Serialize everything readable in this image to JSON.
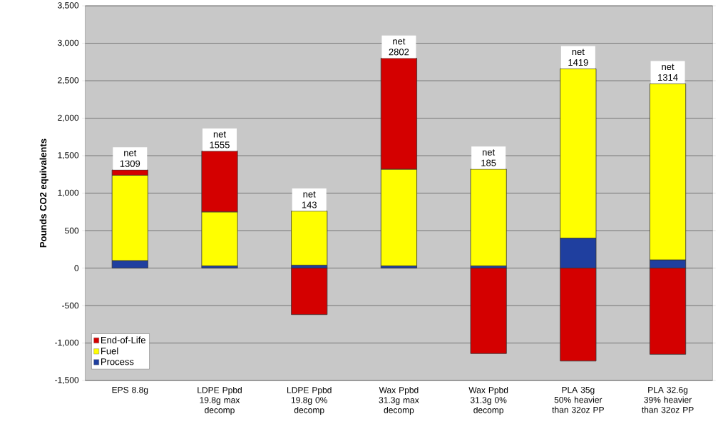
{
  "chart_data": {
    "type": "bar",
    "stacked": true,
    "ylabel": "Pounds CO2 equivalents",
    "categories": [
      "EPS 8.8g",
      "LDPE Ppbd 19.8g max decomp",
      "LDPE Ppbd 19.8g 0% decomp",
      "Wax Ppbd 31.3g max decomp",
      "Wax Ppbd 31.3g 0% decomp",
      "PLA 35g 50% heavier than 32oz PP",
      "PLA 32.6g 39% heavier than 32oz PP"
    ],
    "series": [
      {
        "name": "Process",
        "color": "#1f3f9f",
        "values": [
          100,
          30,
          40,
          30,
          30,
          400,
          110
        ]
      },
      {
        "name": "Fuel",
        "color": "#ffff00",
        "values": [
          1140,
          720,
          720,
          1290,
          1290,
          2260,
          2350
        ]
      },
      {
        "name": "End-of-Life",
        "color": "#d40000",
        "values": [
          70,
          810,
          -620,
          1480,
          -1140,
          -1240,
          -1150
        ]
      }
    ],
    "totals": [
      "net 1309",
      "net 1555",
      "net 143",
      "net 2802",
      "net 185",
      "net 1419",
      "net 1314"
    ],
    "ylim": [
      -1500,
      3500
    ],
    "yticks": [
      {
        "value": -1500,
        "label": "-1,500"
      },
      {
        "value": -1000,
        "label": "-1,000"
      },
      -500,
      0,
      500,
      {
        "value": 1000,
        "label": "1,000"
      },
      {
        "value": 1500,
        "label": "1,500"
      },
      {
        "value": 2000,
        "label": "2,000"
      },
      {
        "value": 2500,
        "label": "2,500"
      },
      {
        "value": 3000,
        "label": "3,000"
      },
      {
        "value": 3500,
        "label": "3,500"
      }
    ],
    "grid": "y",
    "legend": "bottom left"
  }
}
